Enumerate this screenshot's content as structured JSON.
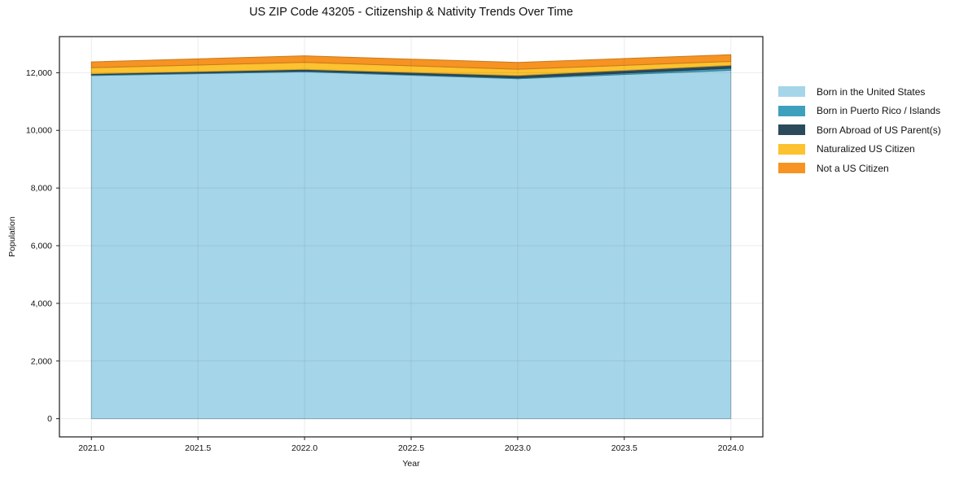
{
  "chart_data": {
    "type": "area",
    "stacked": true,
    "title": "US ZIP Code 43205 - Citizenship & Nativity Trends Over Time",
    "xlabel": "Year",
    "ylabel": "Population",
    "x": [
      2021,
      2022,
      2023,
      2024
    ],
    "series": [
      {
        "name": "Born in the United States",
        "color": "#a5d5e8",
        "values": [
          11900,
          12030,
          11790,
          12085
        ]
      },
      {
        "name": "Born in Puerto Rico / Islands",
        "color": "#3fa0be",
        "values": [
          30,
          30,
          30,
          70
        ]
      },
      {
        "name": "Born Abroad of US Parent(s)",
        "color": "#2b4a5c",
        "values": [
          35,
          55,
          85,
          100
        ]
      },
      {
        "name": "Naturalized US Citizen",
        "color": "#fcc22f",
        "values": [
          205,
          245,
          215,
          135
        ]
      },
      {
        "name": "Not a US Citizen",
        "color": "#f69322",
        "values": [
          205,
          225,
          235,
          235
        ]
      }
    ],
    "totals_by_year": [
      12375,
      12585,
      12355,
      12625
    ],
    "x_ticks": [
      {
        "value": 2021.0,
        "label": "2021.0"
      },
      {
        "value": 2021.5,
        "label": "2021.5"
      },
      {
        "value": 2022.0,
        "label": "2022.0"
      },
      {
        "value": 2022.5,
        "label": "2022.5"
      },
      {
        "value": 2023.0,
        "label": "2023.0"
      },
      {
        "value": 2023.5,
        "label": "2023.5"
      },
      {
        "value": 2024.0,
        "label": "2024.0"
      }
    ],
    "y_ticks": [
      {
        "value": 0,
        "label": "0"
      },
      {
        "value": 2000,
        "label": "2,000"
      },
      {
        "value": 4000,
        "label": "4,000"
      },
      {
        "value": 6000,
        "label": "6,000"
      },
      {
        "value": 8000,
        "label": "8,000"
      },
      {
        "value": 10000,
        "label": "10,000"
      },
      {
        "value": 12000,
        "label": "12,000"
      }
    ],
    "xlim": [
      2020.85,
      2024.15
    ],
    "ylim": [
      -631,
      13252
    ],
    "grid": true,
    "legend_position": "right-outside",
    "colors": {
      "background": "#ffffff",
      "spine": "#1a1a1a",
      "grid": "rgba(60,60,60,0.10)",
      "text": "#111111"
    }
  }
}
